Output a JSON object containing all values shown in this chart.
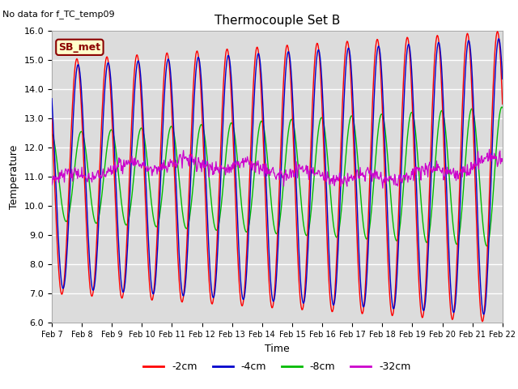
{
  "title": "Thermocouple Set B",
  "note": "No data for f_TC_temp09",
  "ylabel": "Temperature",
  "xlabel": "Time",
  "ylim": [
    6.0,
    16.0
  ],
  "yticks": [
    6.0,
    7.0,
    8.0,
    9.0,
    10.0,
    11.0,
    12.0,
    13.0,
    14.0,
    15.0,
    16.0
  ],
  "legend_label": "SB_met",
  "legend_bg": "#ffffcc",
  "legend_edge": "#8b0000",
  "series_colors": {
    "-2cm": "#ff0000",
    "-4cm": "#0000cc",
    "-8cm": "#00bb00",
    "-32cm": "#cc00cc"
  },
  "series_labels": [
    "-2cm",
    "-4cm",
    "-8cm",
    "-32cm"
  ],
  "bg_color": "#dcdcdc",
  "fig_bg": "#ffffff",
  "grid_color": "#ffffff",
  "grid_linewidth": 1.0
}
